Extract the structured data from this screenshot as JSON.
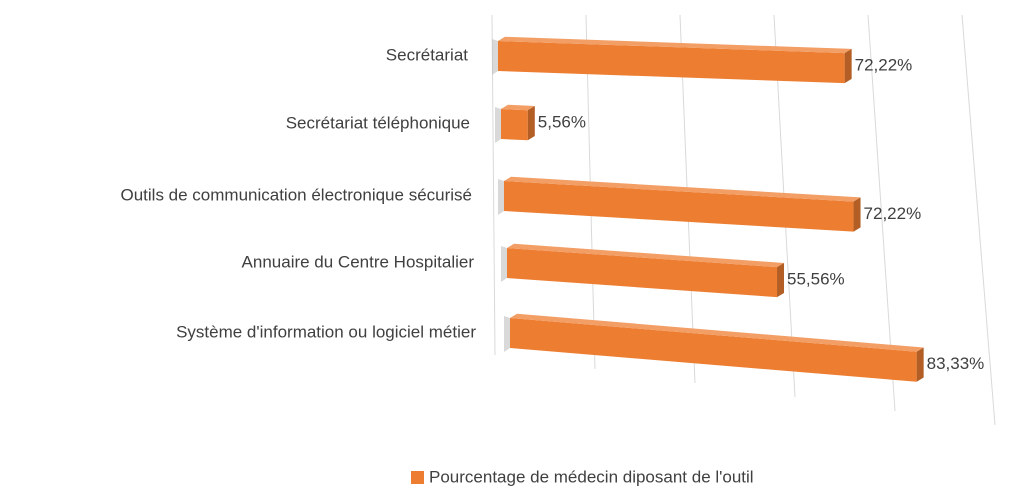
{
  "chart_data": {
    "type": "bar",
    "orientation": "horizontal",
    "categories": [
      "Secrétariat",
      "Secrétariat téléphonique",
      "Outils de communication électronique sécurisé",
      "Annuaire du Centre Hospitalier",
      "Système d'information ou logiciel métier"
    ],
    "series": [
      {
        "name": "Pourcentage de médecin diposant de l'outil",
        "color": "#ed7d31",
        "values": [
          72.22,
          5.56,
          72.22,
          55.56,
          83.33
        ],
        "value_labels": [
          "72,22%",
          "5,56%",
          "72,22%",
          "55,56%",
          "83,33%"
        ]
      }
    ],
    "xlim": [
      0,
      100
    ],
    "xticks": [
      0,
      20,
      40,
      60,
      80,
      100
    ],
    "grid": true,
    "legend": "bottom"
  }
}
